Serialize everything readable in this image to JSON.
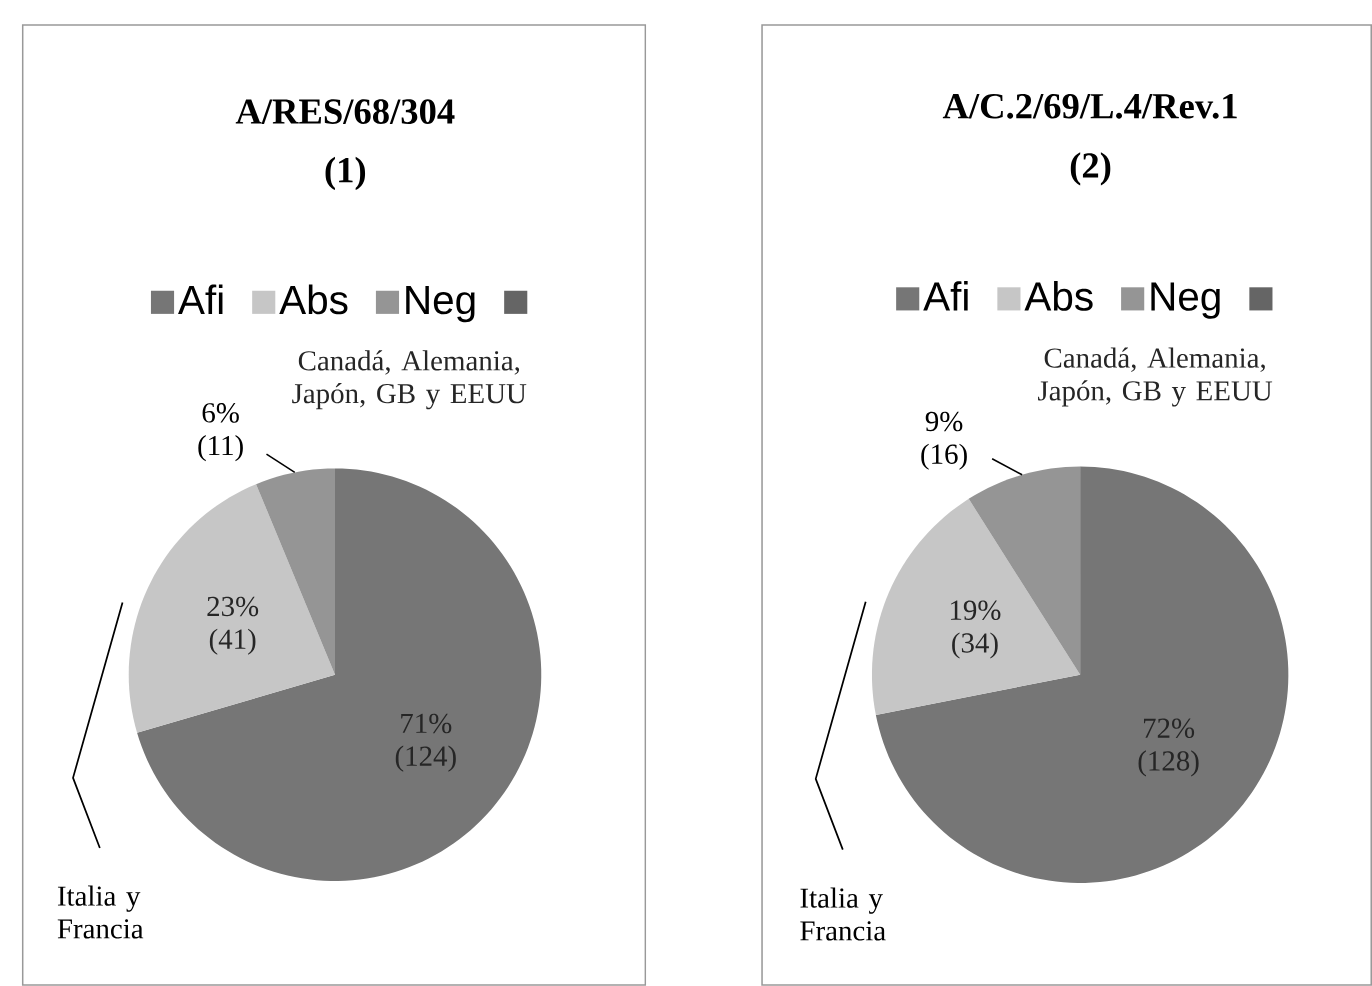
{
  "chart_data": [
    {
      "type": "pie",
      "title": "A/RES/68/304",
      "subtitle": "(1)",
      "categories": [
        "Afi",
        "Abs",
        "Neg",
        null
      ],
      "values": [
        124,
        41,
        11,
        0
      ],
      "colors": [
        "#767676",
        "#c6c6c6",
        "#959595",
        "#656565"
      ],
      "value_labels": [
        "71% (124)",
        "23% (41)",
        "6% (11)",
        null
      ],
      "legend": "top",
      "annotations": [
        "Canadá, Alemania, Japón, GB y EEUU",
        "Italia y Francia"
      ]
    },
    {
      "type": "pie",
      "title": "A/C.2/69/L.4/Rev.1",
      "subtitle": "(2)",
      "categories": [
        "Afi",
        "Abs",
        "Neg",
        null
      ],
      "values": [
        128,
        34,
        16,
        0
      ],
      "colors": [
        "#767676",
        "#c6c6c6",
        "#959595",
        "#656565"
      ],
      "value_labels": [
        "72% (128)",
        "19% (34)",
        "9% (16)",
        null
      ],
      "legend": "top",
      "annotations": [
        "Canadá, Alemania, Japón, GB y EEUU",
        "Italia y Francia"
      ]
    }
  ]
}
